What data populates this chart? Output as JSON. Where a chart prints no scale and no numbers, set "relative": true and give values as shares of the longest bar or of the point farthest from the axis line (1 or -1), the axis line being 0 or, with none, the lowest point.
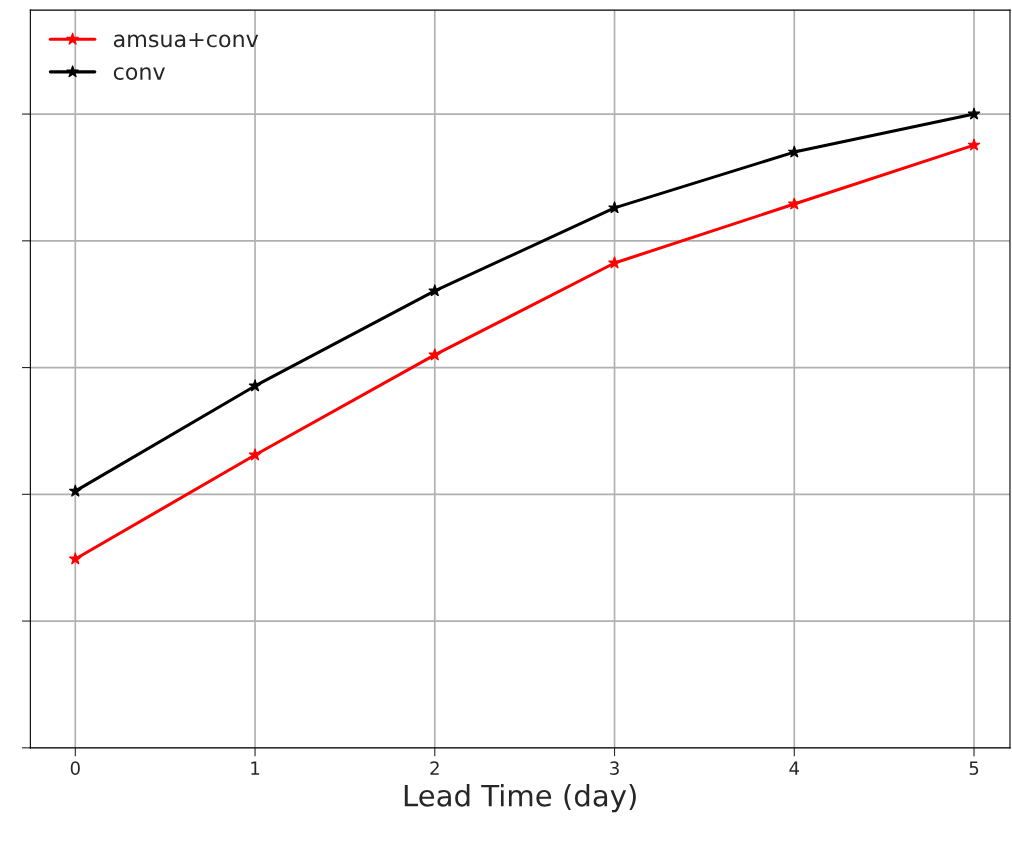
{
  "chart_data": {
    "type": "line",
    "xlabel": "Lead Time (day)",
    "x": [
      0,
      1,
      2,
      3,
      4,
      5
    ],
    "xlim": [
      -0.25,
      5.2
    ],
    "xticks": [
      0,
      1,
      2,
      3,
      4,
      5
    ],
    "relative": true,
    "tick_labels": "x",
    "grid": true,
    "legend": "top left",
    "marker": "star",
    "line_style": "solid",
    "series": [
      {
        "name": "amsua+conv",
        "color": "#ff0000",
        "values": [
          0.298,
          0.462,
          0.62,
          0.765,
          0.858,
          0.951
        ]
      },
      {
        "name": "conv",
        "color": "#000000",
        "values": [
          0.405,
          0.571,
          0.721,
          0.852,
          0.94,
          1.0
        ]
      }
    ]
  }
}
